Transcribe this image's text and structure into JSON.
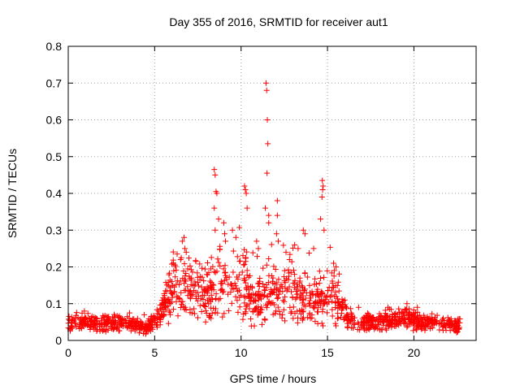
{
  "chart_data": {
    "type": "scatter",
    "title": "Day 355 of 2016, SRMTID for receiver aut1",
    "xlabel": "GPS time / hours",
    "ylabel": "SRMTID / TECUs",
    "xlim": [
      0,
      23.6
    ],
    "ylim": [
      0,
      0.8
    ],
    "x_ticks": [
      0,
      5,
      10,
      15,
      20
    ],
    "y_ticks": [
      0,
      0.1,
      0.2,
      0.3,
      0.4,
      0.5,
      0.6,
      0.7,
      0.8
    ],
    "x_tick_labels": [
      "0",
      "5",
      "10",
      "15",
      "20"
    ],
    "y_tick_labels": [
      "0",
      "0.1",
      "0.2",
      "0.3",
      "0.4",
      "0.5",
      "0.6",
      "0.7",
      "0.8"
    ],
    "grid": true,
    "marker": "plus",
    "series": [
      {
        "name": "SRMTID",
        "color": "#ff0000",
        "baseline_profile": {
          "x": [
            0,
            1,
            2,
            3,
            4,
            4.5,
            5,
            5.5,
            5.8,
            6.2,
            6.8,
            7.5,
            8.2,
            8.6,
            9.2,
            10.2,
            10.8,
            11.5,
            12.2,
            12.8,
            13.4,
            14.2,
            14.8,
            15.3,
            15.8,
            16.5,
            17.5,
            18.5,
            19.5,
            20.5,
            21.5,
            22.7
          ],
          "y": [
            0.05,
            0.055,
            0.045,
            0.048,
            0.04,
            0.035,
            0.055,
            0.08,
            0.13,
            0.16,
            0.14,
            0.13,
            0.12,
            0.16,
            0.14,
            0.15,
            0.1,
            0.13,
            0.12,
            0.14,
            0.12,
            0.11,
            0.12,
            0.12,
            0.08,
            0.05,
            0.05,
            0.055,
            0.06,
            0.05,
            0.045,
            0.04
          ]
        },
        "peaks": [
          {
            "x": 11.45,
            "y": 0.7
          },
          {
            "x": 11.48,
            "y": 0.68
          },
          {
            "x": 11.52,
            "y": 0.6
          },
          {
            "x": 11.55,
            "y": 0.535
          },
          {
            "x": 11.5,
            "y": 0.455
          },
          {
            "x": 8.45,
            "y": 0.465
          },
          {
            "x": 8.5,
            "y": 0.45
          },
          {
            "x": 8.55,
            "y": 0.405
          },
          {
            "x": 8.6,
            "y": 0.4
          },
          {
            "x": 8.45,
            "y": 0.36
          },
          {
            "x": 8.7,
            "y": 0.33
          },
          {
            "x": 8.5,
            "y": 0.3
          },
          {
            "x": 14.7,
            "y": 0.435
          },
          {
            "x": 14.75,
            "y": 0.42
          },
          {
            "x": 14.72,
            "y": 0.41
          },
          {
            "x": 14.68,
            "y": 0.39
          },
          {
            "x": 14.6,
            "y": 0.33
          },
          {
            "x": 14.8,
            "y": 0.3
          },
          {
            "x": 10.2,
            "y": 0.42
          },
          {
            "x": 10.25,
            "y": 0.41
          },
          {
            "x": 10.3,
            "y": 0.4
          },
          {
            "x": 10.35,
            "y": 0.36
          },
          {
            "x": 11.4,
            "y": 0.36
          },
          {
            "x": 11.6,
            "y": 0.34
          },
          {
            "x": 11.6,
            "y": 0.32
          },
          {
            "x": 12.1,
            "y": 0.38
          },
          {
            "x": 12.1,
            "y": 0.34
          },
          {
            "x": 12.05,
            "y": 0.29
          },
          {
            "x": 12.15,
            "y": 0.27
          },
          {
            "x": 9.0,
            "y": 0.32
          },
          {
            "x": 9.05,
            "y": 0.29
          },
          {
            "x": 9.1,
            "y": 0.27
          },
          {
            "x": 6.3,
            "y": 0.235
          },
          {
            "x": 6.5,
            "y": 0.22
          },
          {
            "x": 6.6,
            "y": 0.27
          },
          {
            "x": 6.7,
            "y": 0.28
          },
          {
            "x": 6.75,
            "y": 0.25
          },
          {
            "x": 9.5,
            "y": 0.3
          },
          {
            "x": 9.7,
            "y": 0.28
          },
          {
            "x": 10.9,
            "y": 0.27
          },
          {
            "x": 11.0,
            "y": 0.25
          },
          {
            "x": 13.1,
            "y": 0.26
          },
          {
            "x": 13.3,
            "y": 0.25
          },
          {
            "x": 13.6,
            "y": 0.3
          },
          {
            "x": 13.7,
            "y": 0.29
          },
          {
            "x": 14.2,
            "y": 0.25
          },
          {
            "x": 15.35,
            "y": 0.21
          },
          {
            "x": 15.4,
            "y": 0.19
          },
          {
            "x": 15.5,
            "y": 0.2
          },
          {
            "x": 12.6,
            "y": 0.24
          },
          {
            "x": 12.8,
            "y": 0.22
          },
          {
            "x": 3.55,
            "y": 0.075
          },
          {
            "x": 4.4,
            "y": 0.07
          },
          {
            "x": 5.5,
            "y": 0.1
          },
          {
            "x": 16.0,
            "y": 0.11
          },
          {
            "x": 16.8,
            "y": 0.09
          },
          {
            "x": 18.5,
            "y": 0.09
          },
          {
            "x": 19.6,
            "y": 0.1
          },
          {
            "x": 20.2,
            "y": 0.09
          }
        ]
      }
    ]
  }
}
